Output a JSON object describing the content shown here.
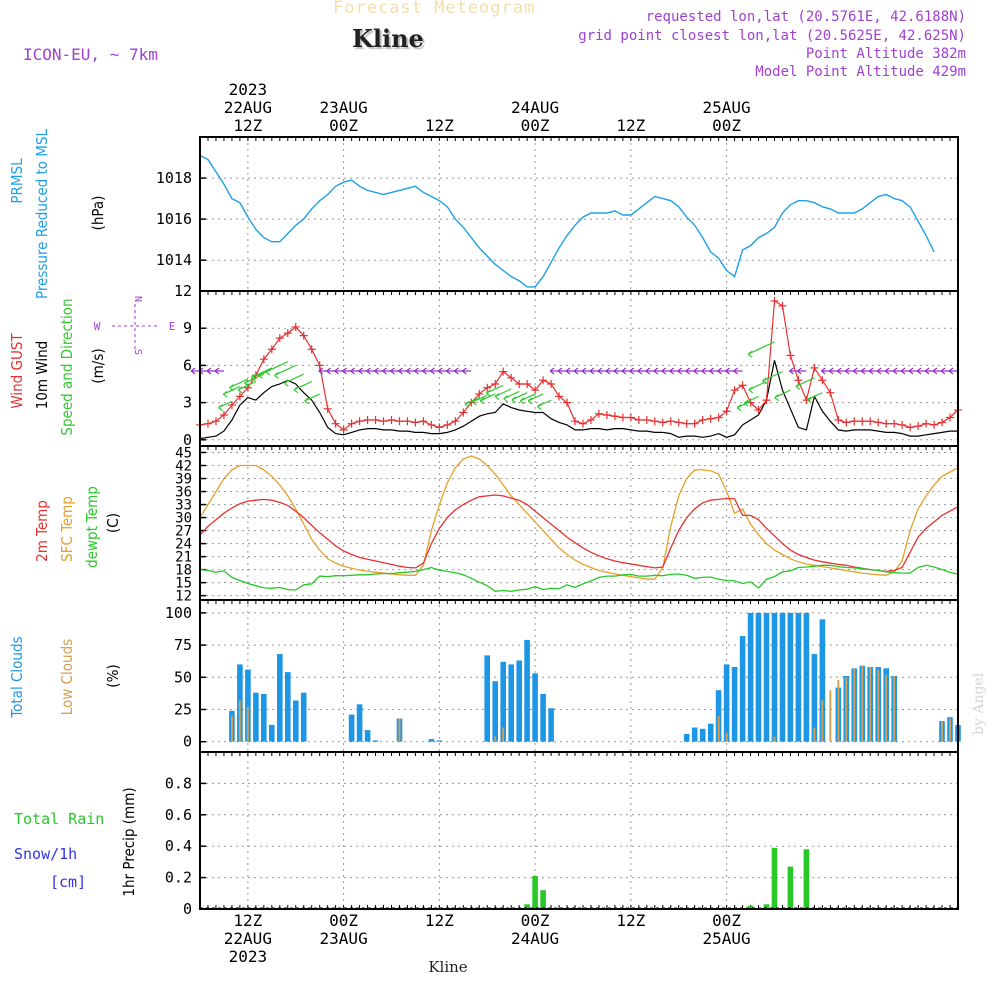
{
  "header": {
    "product": "Forecast Meteogram",
    "location": "Kline",
    "model": "ICON-EU, ~ 7km",
    "requested": "requested lon,lat (20.5761E, 42.6188N)",
    "grid_point": "grid point closest lon,lat (20.5625E, 42.625N)",
    "point_alt": "Point Altitude 382m",
    "model_alt": "Model Point Altitude 429m",
    "credit": "by Angel",
    "footer_location": "Kline"
  },
  "colors": {
    "pressure": "#1ea0e6",
    "gust": "#e63232",
    "wind": "#000000",
    "arrows_hi": "#32c832",
    "arrows_lo": "#9632c8",
    "t2m": "#e63232",
    "tsfc": "#e6a028",
    "dewpt": "#28c828",
    "total_clouds": "#1e96e6",
    "low_clouds": "#d2a050",
    "rain": "#28c828",
    "snow": "#3232e6",
    "meta": "#a040d0"
  },
  "chart_data": [
    {
      "type": "line",
      "panel": "pressure",
      "ylabel": [
        "PRMSL",
        "Pressure Reduced to MSL"
      ],
      "unit": "(hPa)",
      "ylim": [
        1012.5,
        1020.0
      ],
      "yticks": [
        "1014",
        "1016",
        "1018"
      ],
      "start_hour": 6,
      "step_hours": 1,
      "series": [
        {
          "values": [
            1019.1,
            1018.9,
            1018.3,
            1017.7,
            1017.0,
            1016.8,
            1016.1,
            1015.5,
            1015.1,
            1014.9,
            1014.9,
            1015.3,
            1015.7,
            1016.0,
            1016.5,
            1016.9,
            1017.2,
            1017.6,
            1017.8,
            1017.9,
            1017.6,
            1017.4,
            1017.3,
            1017.2,
            1017.3,
            1017.4,
            1017.5,
            1017.6,
            1017.3,
            1017.1,
            1016.9,
            1016.6,
            1016.0,
            1015.6,
            1015.1,
            1014.6,
            1014.2,
            1013.8,
            1013.5,
            1013.2,
            1013.0,
            1012.7,
            1012.7,
            1013.2,
            1013.9,
            1014.6,
            1015.2,
            1015.7,
            1016.1,
            1016.3,
            1016.3,
            1016.3,
            1016.4,
            1016.2,
            1016.2,
            1016.5,
            1016.8,
            1017.1,
            1017.0,
            1016.9,
            1016.6,
            1016.1,
            1015.7,
            1015.1,
            1014.4,
            1014.1,
            1013.5,
            1013.2,
            1014.5,
            1014.7,
            1015.1,
            1015.3,
            1015.6,
            1016.3,
            1016.7,
            1016.9,
            1016.9,
            1016.8,
            1016.6,
            1016.5,
            1016.3,
            1016.3,
            1016.3,
            1016.5,
            1016.8,
            1017.1,
            1017.2,
            1017.0,
            1016.9,
            1016.6,
            1015.9,
            1015.2,
            1014.4
          ]
        }
      ]
    },
    {
      "type": "line",
      "panel": "wind",
      "ylabel": [
        "Wind GUST",
        "10m Wind",
        "Speed and Direction"
      ],
      "unit": "(m/s)",
      "compass": [
        "N",
        "E",
        "S",
        "W"
      ],
      "ylim": [
        -0.5,
        12
      ],
      "yticks": [
        "0",
        "3",
        "6",
        "9",
        "12"
      ],
      "start_hour": 6,
      "step_hours": 1,
      "series": [
        {
          "name": "Wind GUST",
          "values": [
            1.2,
            1.3,
            1.5,
            2.0,
            2.8,
            3.5,
            4.2,
            5.2,
            6.5,
            7.3,
            8.2,
            8.6,
            9.1,
            8.4,
            7.3,
            6.0,
            2.5,
            1.3,
            0.8,
            1.3,
            1.5,
            1.6,
            1.6,
            1.5,
            1.6,
            1.5,
            1.5,
            1.4,
            1.5,
            1.2,
            1.0,
            1.2,
            1.5,
            2.2,
            3.0,
            3.7,
            4.2,
            4.5,
            5.5,
            5.0,
            4.5,
            4.5,
            4.0,
            4.8,
            4.5,
            3.5,
            3.0,
            1.5,
            1.3,
            1.6,
            2.1,
            2.0,
            1.9,
            1.8,
            1.8,
            1.6,
            1.6,
            1.5,
            1.4,
            1.5,
            1.4,
            1.3,
            1.3,
            1.6,
            1.7,
            1.8,
            2.3,
            4.0,
            4.4,
            3.0,
            2.4,
            3.2,
            11.2,
            10.8,
            6.8,
            4.8,
            3.2,
            5.8,
            4.8,
            3.8,
            1.6,
            1.4,
            1.5,
            1.5,
            1.5,
            1.4,
            1.3,
            1.3,
            1.2,
            1.0,
            1.1,
            1.3,
            1.2,
            1.4,
            1.8,
            2.4
          ]
        },
        {
          "name": "10m Wind",
          "values": [
            0.1,
            0.2,
            0.3,
            0.7,
            1.6,
            2.8,
            3.4,
            3.2,
            3.8,
            4.3,
            4.5,
            4.8,
            4.5,
            3.8,
            3.2,
            2.2,
            1.0,
            0.5,
            0.4,
            0.6,
            0.8,
            0.9,
            0.9,
            0.8,
            0.8,
            0.7,
            0.7,
            0.6,
            0.6,
            0.5,
            0.5,
            0.6,
            0.8,
            1.1,
            1.5,
            1.9,
            2.1,
            2.2,
            2.9,
            2.6,
            2.4,
            2.3,
            2.2,
            2.2,
            1.7,
            1.4,
            1.2,
            0.8,
            0.8,
            0.9,
            0.9,
            0.8,
            0.9,
            0.9,
            0.8,
            0.7,
            0.7,
            0.6,
            0.6,
            0.5,
            0.2,
            0.3,
            0.3,
            0.2,
            0.3,
            0.5,
            0.2,
            0.4,
            1.2,
            1.6,
            2.0,
            3.2,
            6.4,
            4.0,
            2.5,
            1.0,
            0.8,
            3.5,
            2.3,
            1.5,
            0.8,
            0.7,
            0.8,
            0.8,
            0.8,
            0.7,
            0.6,
            0.6,
            0.5,
            0.3,
            0.3,
            0.4,
            0.5,
            0.6,
            0.7,
            0.7
          ]
        }
      ]
    },
    {
      "type": "line",
      "panel": "temperature",
      "ylabel": [
        "2m Temp",
        "SFC Temp",
        "dewpt Temp"
      ],
      "unit": "(C)",
      "ylim": [
        11,
        46.5
      ],
      "yticks": [
        "12",
        "15",
        "18",
        "21",
        "24",
        "27",
        "30",
        "33",
        "36",
        "39",
        "42",
        "45"
      ],
      "start_hour": 6,
      "step_hours": 1,
      "series": [
        {
          "name": "2m Temp",
          "values": [
            26,
            28,
            29.5,
            31,
            32.2,
            33.2,
            33.8,
            34.0,
            34.2,
            34.0,
            33.5,
            32.8,
            31.5,
            30.0,
            28.2,
            26.5,
            25.0,
            23.5,
            22.3,
            21.5,
            20.8,
            20.4,
            20.0,
            19.6,
            19.2,
            18.8,
            18.5,
            18.4,
            19.5,
            24.0,
            27.5,
            30.0,
            31.8,
            33.0,
            34.0,
            34.8,
            35.0,
            35.2,
            35.0,
            34.5,
            34.0,
            33.0,
            31.5,
            30.0,
            28.5,
            27.0,
            25.5,
            24.2,
            23.0,
            22.0,
            21.2,
            20.5,
            20.0,
            19.6,
            19.3,
            19.0,
            18.7,
            18.4,
            18.6,
            23.0,
            27.0,
            30.0,
            32.0,
            33.4,
            34.0,
            34.2,
            34.4,
            34.3,
            30.5,
            30.5,
            29.5,
            27.5,
            25.8,
            24.0,
            22.5,
            21.5,
            20.8,
            20.2,
            19.8,
            19.5,
            19.2,
            19.0,
            18.6,
            18.3,
            18.0,
            17.8,
            17.6,
            17.8,
            18.5,
            22.0,
            25.5,
            27.5,
            29.0,
            30.5,
            31.5,
            32.5
          ]
        },
        {
          "name": "SFC Temp",
          "values": [
            30,
            33,
            36,
            39,
            41,
            42,
            42,
            42,
            41,
            39.5,
            37.5,
            35,
            32,
            28.5,
            25,
            22.5,
            20.5,
            19.5,
            18.8,
            18.3,
            17.9,
            17.6,
            17.4,
            17.2,
            17.0,
            16.8,
            16.7,
            16.7,
            19.0,
            27.0,
            33.0,
            38.0,
            41.5,
            43.5,
            44.2,
            43.5,
            42.0,
            40.0,
            37.5,
            35.0,
            33.0,
            31.0,
            29.0,
            27.0,
            25.0,
            23.0,
            21.5,
            20.2,
            19.2,
            18.5,
            17.8,
            17.4,
            17.0,
            16.7,
            16.4,
            16.1,
            15.8,
            15.8,
            18.5,
            28.0,
            35.0,
            39.0,
            41.0,
            41.0,
            40.8,
            40.0,
            36.0,
            31.0,
            32.0,
            28.5,
            26.0,
            24.0,
            22.5,
            21.5,
            20.5,
            19.8,
            19.3,
            19.0,
            18.7,
            18.4,
            18.1,
            17.8,
            17.5,
            17.2,
            17.0,
            16.8,
            16.7,
            17.5,
            20.0,
            27.0,
            32.0,
            35.0,
            37.5,
            39.5,
            40.5,
            41.5
          ]
        },
        {
          "name": "dewpt Temp",
          "values": [
            18,
            17.8,
            17.4,
            17.7,
            16.2,
            15.5,
            14.8,
            14.3,
            13.8,
            13.7,
            13.9,
            13.4,
            13.3,
            14.5,
            14.7,
            16.5,
            16.4,
            16.6,
            16.6,
            16.7,
            16.8,
            16.8,
            17.0,
            17.1,
            17.1,
            17.3,
            17.4,
            17.6,
            18.0,
            18.5,
            17.9,
            17.6,
            17.3,
            16.8,
            16.0,
            15.1,
            14.3,
            13.0,
            13.2,
            13.0,
            13.3,
            13.5,
            14.1,
            13.4,
            13.7,
            13.6,
            14.5,
            13.9,
            14.7,
            15.4,
            16.2,
            16.5,
            16.5,
            16.8,
            16.9,
            16.5,
            16.5,
            16.7,
            16.6,
            16.9,
            17.0,
            16.7,
            16.0,
            16.2,
            16.3,
            15.8,
            15.5,
            15.4,
            14.8,
            15.2,
            13.8,
            15.8,
            16.4,
            17.5,
            17.7,
            18.5,
            18.6,
            18.8,
            19.0,
            19.0,
            18.7,
            18.5,
            18.4,
            18.2,
            18.0,
            17.8,
            17.5,
            17.3,
            17.2,
            17.2,
            18.5,
            19.0,
            18.6,
            18.0,
            17.4,
            16.9
          ]
        }
      ]
    },
    {
      "type": "bar",
      "panel": "clouds",
      "ylabel": [
        "Total Clouds",
        "Low Clouds"
      ],
      "unit": "(%)",
      "ylim": [
        -8,
        110
      ],
      "yticks": [
        "0",
        "25",
        "50",
        "75",
        "100"
      ],
      "start_hour": 6,
      "step_hours": 1,
      "series": [
        {
          "name": "Total Clouds",
          "values": [
            0,
            0,
            0,
            0,
            24,
            60,
            56,
            38,
            37,
            13,
            68,
            54,
            32,
            38,
            0,
            0,
            0,
            0,
            0,
            21,
            29,
            9,
            1,
            0,
            0,
            18,
            0,
            0,
            0,
            2,
            1,
            0,
            0,
            0,
            0,
            0,
            67,
            47,
            62,
            60,
            63,
            79,
            53,
            37,
            26,
            0,
            0,
            0,
            0,
            0,
            0,
            0,
            0,
            0,
            0,
            0,
            0,
            0,
            0,
            0,
            0,
            6,
            11,
            10,
            14,
            40,
            60,
            58,
            82,
            100,
            100,
            100,
            100,
            100,
            100,
            100,
            100,
            68,
            95,
            0,
            42,
            51,
            57,
            59,
            58,
            58,
            57,
            51,
            0,
            0,
            0,
            0,
            0,
            16,
            19,
            13
          ]
        },
        {
          "name": "Low Clouds",
          "values": [
            0,
            0,
            0,
            0,
            20,
            32,
            27,
            0,
            0,
            0,
            0,
            0,
            0,
            0,
            0,
            0,
            0,
            0,
            0,
            0,
            0,
            0,
            0,
            0,
            0,
            18,
            0,
            0,
            0,
            0,
            0,
            0,
            0,
            0,
            0,
            0,
            0,
            4,
            11,
            0,
            0,
            0,
            0,
            0,
            0,
            0,
            0,
            0,
            0,
            0,
            0,
            0,
            0,
            0,
            0,
            0,
            0,
            0,
            0,
            0,
            0,
            0,
            0,
            0,
            0,
            20,
            7,
            0,
            0,
            0,
            0,
            0,
            4,
            0,
            0,
            0,
            0,
            11,
            32,
            40,
            48,
            50,
            57,
            59,
            58,
            56,
            52,
            51,
            0,
            0,
            0,
            0,
            0,
            16,
            18,
            12
          ]
        }
      ]
    },
    {
      "type": "bar",
      "panel": "precip",
      "ylabel": [
        "Total Rain",
        "Snow/1h",
        "[cm]"
      ],
      "unit": "1hr Precip (mm)",
      "ylim": [
        0,
        1.0
      ],
      "yticks": [
        "0",
        "0.2",
        "0.4",
        "0.6",
        "0.8"
      ],
      "start_hour": 6,
      "step_hours": 1,
      "series": [
        {
          "name": "Total Rain",
          "values": [
            0,
            0,
            0,
            0,
            0,
            0,
            0,
            0,
            0,
            0,
            0,
            0,
            0,
            0,
            0,
            0,
            0,
            0,
            0,
            0,
            0,
            0,
            0,
            0,
            0,
            0,
            0,
            0,
            0,
            0,
            0,
            0,
            0,
            0,
            0,
            0,
            0,
            0,
            0,
            0,
            0,
            0.03,
            0.21,
            0.12,
            0,
            0,
            0,
            0,
            0,
            0,
            0,
            0,
            0,
            0,
            0,
            0,
            0,
            0,
            0,
            0,
            0,
            0,
            0,
            0,
            0,
            0,
            0,
            0,
            0,
            0.02,
            0,
            0.03,
            0.39,
            0,
            0.27,
            0,
            0.38,
            0,
            0,
            0,
            0,
            0,
            0,
            0,
            0,
            0,
            0,
            0,
            0,
            0,
            0,
            0,
            0,
            0,
            0,
            0
          ]
        }
      ]
    }
  ],
  "time_axis": {
    "top": [
      {
        "hour": 12,
        "lines": [
          "2023",
          "22AUG",
          "12Z"
        ]
      },
      {
        "hour": 24,
        "lines": [
          "23AUG",
          "00Z"
        ]
      },
      {
        "hour": 36,
        "lines": [
          "12Z"
        ]
      },
      {
        "hour": 48,
        "lines": [
          "24AUG",
          "00Z"
        ]
      },
      {
        "hour": 60,
        "lines": [
          "12Z"
        ]
      },
      {
        "hour": 72,
        "lines": [
          "25AUG",
          "00Z"
        ]
      }
    ],
    "bottom": [
      {
        "hour": 12,
        "lines": [
          "12Z",
          "22AUG",
          "2023"
        ]
      },
      {
        "hour": 24,
        "lines": [
          "00Z",
          "23AUG"
        ]
      },
      {
        "hour": 36,
        "lines": [
          "12Z"
        ]
      },
      {
        "hour": 48,
        "lines": [
          "00Z",
          "24AUG"
        ]
      },
      {
        "hour": 60,
        "lines": [
          "12Z"
        ]
      },
      {
        "hour": 72,
        "lines": [
          "00Z",
          "25AUG"
        ]
      }
    ],
    "grid_hours": [
      12,
      24,
      36,
      48,
      60,
      72
    ]
  }
}
